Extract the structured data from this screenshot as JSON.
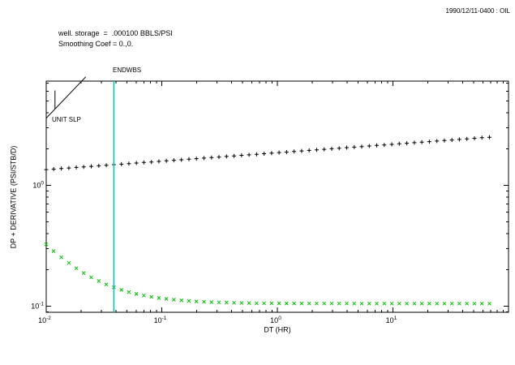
{
  "header": {
    "timestamp_label": "1990/12/11-0400 : OIL"
  },
  "annotations": {
    "wellbore_storage": "well. storage  =  .000100 BBLS/PSI",
    "smoothing": "Smoothing Coef = 0.,0.",
    "endwbs_label": "ENDWBS",
    "unit_slope_label": "UNIT SLP"
  },
  "chart_data": {
    "type": "scatter",
    "title": "",
    "xlabel": "DT (HR)",
    "ylabel": "DP + DERIVATIVE (PSI/STB/D)",
    "xscale": "log",
    "yscale": "log",
    "xlim": [
      0.01,
      100
    ],
    "ylim": [
      0.089,
      7.3
    ],
    "x_major_ticks": [
      0.01,
      0.1,
      1,
      10
    ],
    "y_major_ticks": [
      0.1,
      1
    ],
    "grid": false,
    "x": [
      0.01,
      0.0116,
      0.0135,
      0.0157,
      0.0182,
      0.0211,
      0.0245,
      0.0285,
      0.0331,
      0.0385,
      0.0447,
      0.0519,
      0.0603,
      0.07,
      0.0813,
      0.0944,
      0.1096,
      0.1273,
      0.1479,
      0.1718,
      0.1995,
      0.2317,
      0.2692,
      0.3126,
      0.3631,
      0.4217,
      0.4898,
      0.5688,
      0.6607,
      0.7674,
      0.8913,
      1.035,
      1.202,
      1.396,
      1.622,
      1.884,
      2.188,
      2.541,
      2.951,
      3.428,
      3.981,
      4.624,
      5.37,
      6.237,
      7.244,
      8.414,
      9.772,
      11.35,
      13.18,
      15.31,
      17.78,
      20.65,
      23.99,
      27.86,
      32.36,
      37.58,
      43.65,
      50.7,
      58.88,
      68.39
    ],
    "series": [
      {
        "name": "DP",
        "marker": "plus",
        "color": "#000000",
        "values": [
          1.35,
          1.364,
          1.379,
          1.393,
          1.408,
          1.423,
          1.438,
          1.453,
          1.468,
          1.484,
          1.499,
          1.515,
          1.531,
          1.547,
          1.563,
          1.58,
          1.596,
          1.613,
          1.63,
          1.647,
          1.665,
          1.682,
          1.7,
          1.718,
          1.736,
          1.754,
          1.773,
          1.791,
          1.81,
          1.829,
          1.849,
          1.868,
          1.888,
          1.908,
          1.928,
          1.948,
          1.969,
          1.989,
          2.01,
          2.031,
          2.053,
          2.074,
          2.096,
          2.118,
          2.141,
          2.163,
          2.186,
          2.209,
          2.232,
          2.256,
          2.28,
          2.304,
          2.328,
          2.352,
          2.377,
          2.402,
          2.427,
          2.453,
          2.479,
          2.505
        ]
      },
      {
        "name": "DERIVATIVE",
        "marker": "x",
        "color": "#00bf00",
        "values": [
          0.325,
          0.2861,
          0.2541,
          0.2277,
          0.206,
          0.1882,
          0.1735,
          0.1614,
          0.1514,
          0.1432,
          0.1364,
          0.1309,
          0.1263,
          0.1225,
          0.1194,
          0.1169,
          0.1148,
          0.1131,
          0.1116,
          0.1105,
          0.1095,
          0.1087,
          0.108,
          0.1075,
          0.1071,
          0.1067,
          0.1064,
          0.1062,
          0.1059,
          0.1058,
          0.1056,
          0.1055,
          0.1054,
          0.1053,
          0.1053,
          0.1052,
          0.1052,
          0.1051,
          0.1051,
          0.1051,
          0.1051,
          0.105,
          0.105,
          0.105,
          0.105,
          0.105,
          0.105,
          0.105,
          0.105,
          0.105,
          0.105,
          0.105,
          0.105,
          0.105,
          0.105,
          0.105,
          0.105,
          0.105,
          0.105,
          0.105
        ]
      }
    ],
    "vline": {
      "label": "ENDWBS",
      "x": 0.0385,
      "color": "#00c0c0"
    },
    "unit_slope_line": {
      "x1": 0.01,
      "y1": 3.6,
      "x2": 0.022,
      "y2": 7.92
    },
    "pointer_tick": {
      "x": 0.0119,
      "y1": 4.3,
      "y2": 6.1
    }
  }
}
